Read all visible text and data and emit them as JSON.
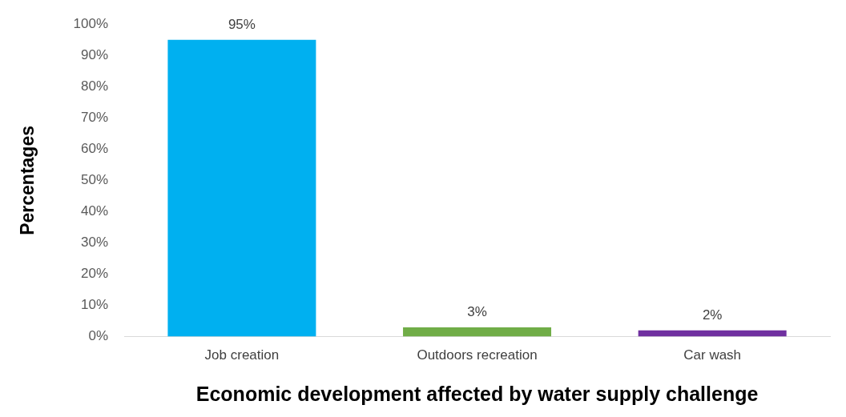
{
  "chart_data": {
    "type": "bar",
    "xlabel": "Economic development affected by water supply challenge",
    "ylabel": "Percentages",
    "categories": [
      "Job creation",
      "Outdoors recreation",
      "Car wash"
    ],
    "values": [
      95,
      3,
      2
    ],
    "colors": [
      "#00b0f0",
      "#70ad47",
      "#7030a0"
    ],
    "value_labels": [
      "95%",
      "3%",
      "2%"
    ],
    "ylim": [
      0,
      100
    ],
    "yticks": [
      {
        "value": 0,
        "label": "0%"
      },
      {
        "value": 10,
        "label": "10%"
      },
      {
        "value": 20,
        "label": "20%"
      },
      {
        "value": 30,
        "label": "30%"
      },
      {
        "value": 40,
        "label": "40%"
      },
      {
        "value": 50,
        "label": "50%"
      },
      {
        "value": 60,
        "label": "60%"
      },
      {
        "value": 70,
        "label": "70%"
      },
      {
        "value": 80,
        "label": "80%"
      },
      {
        "value": 90,
        "label": "90%"
      },
      {
        "value": 100,
        "label": "100%"
      }
    ],
    "grid": false,
    "legend": false
  }
}
